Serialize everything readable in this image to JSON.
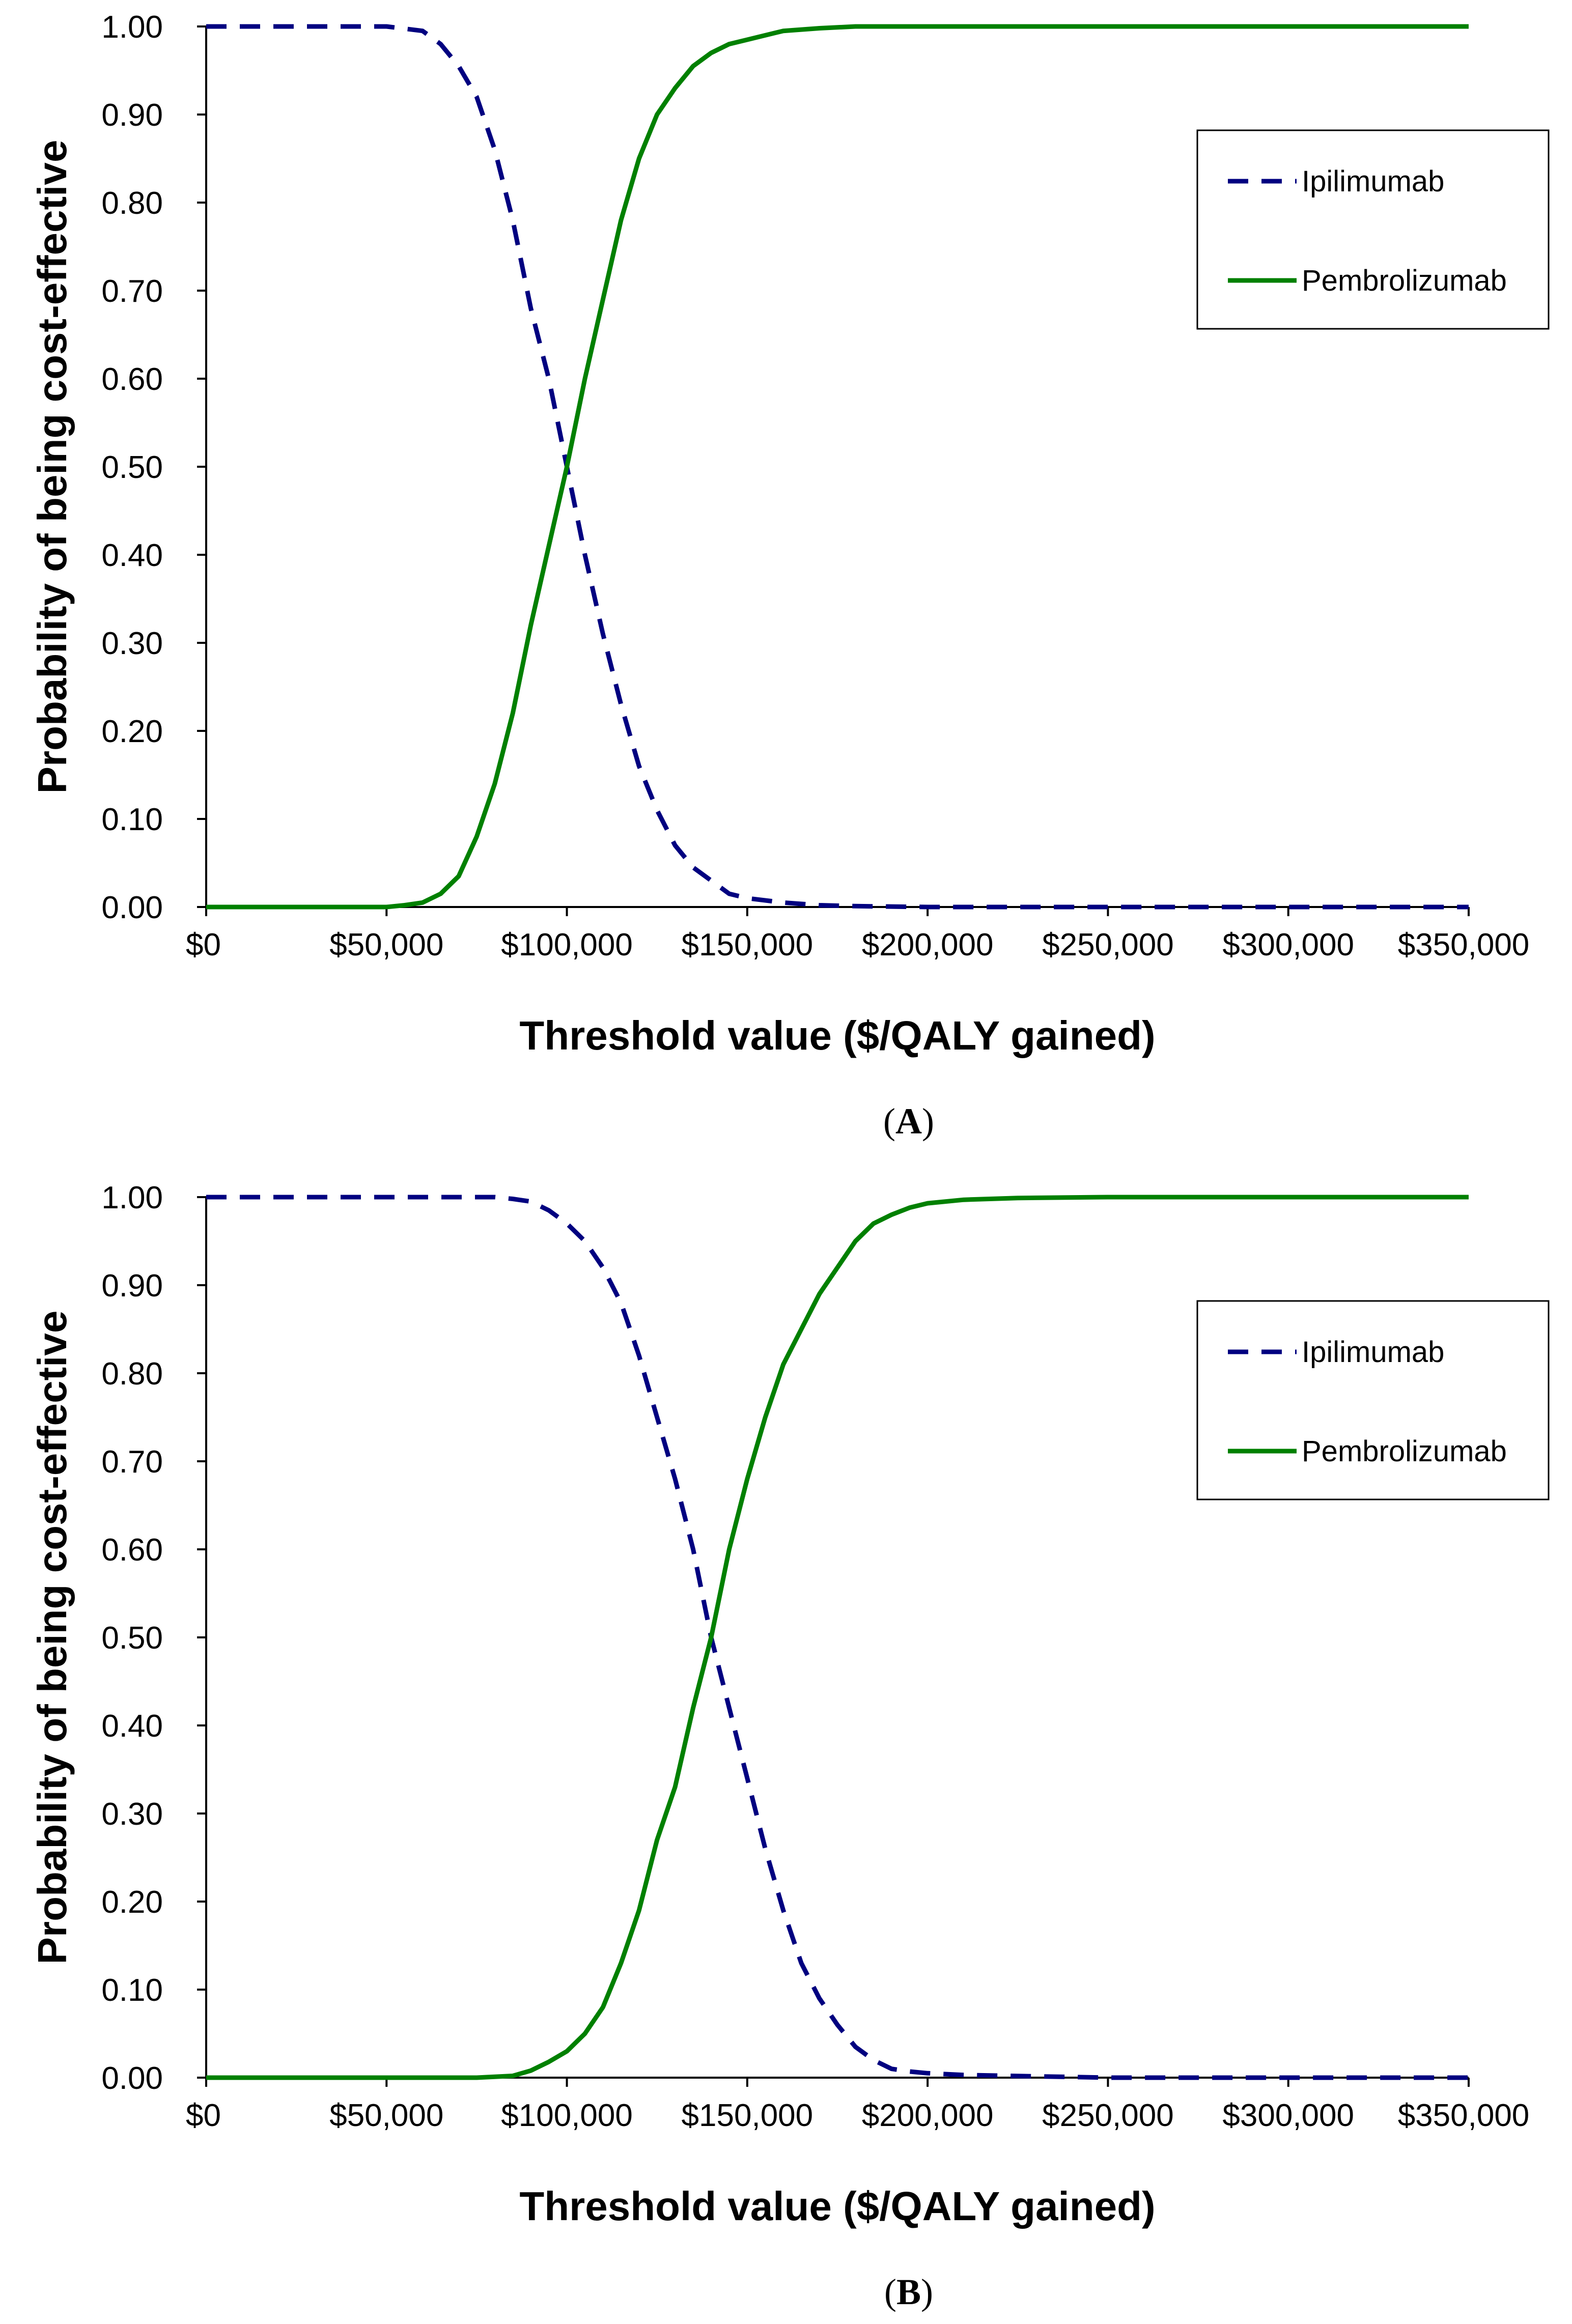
{
  "chart_data": [
    {
      "type": "line",
      "panel_label": "(A)",
      "panel_letter": "A",
      "xlabel": "Threshold value ($/QALY gained)",
      "ylabel": "Probability of being cost-effective",
      "xlim": [
        0,
        350000
      ],
      "ylim": [
        0,
        1
      ],
      "x_ticks": [
        0,
        50000,
        100000,
        150000,
        200000,
        250000,
        300000,
        350000
      ],
      "x_tick_labels": [
        "$0",
        "$50,000",
        "$100,000",
        "$150,000",
        "$200,000",
        "$250,000",
        "$300,000",
        "$350,000"
      ],
      "y_ticks": [
        0,
        0.1,
        0.2,
        0.3,
        0.4,
        0.5,
        0.6,
        0.7,
        0.8,
        0.9,
        1.0
      ],
      "y_tick_labels": [
        "0.00",
        "0.10",
        "0.20",
        "0.30",
        "0.40",
        "0.50",
        "0.60",
        "0.70",
        "0.80",
        "0.90",
        "1.00"
      ],
      "legend_position": "top-right",
      "series": [
        {
          "name": "Ipilimumab",
          "style": "dashed",
          "color": "#000080",
          "x": [
            0,
            50000,
            60000,
            65000,
            70000,
            75000,
            80000,
            85000,
            90000,
            95000,
            100000,
            105000,
            110000,
            115000,
            120000,
            125000,
            130000,
            135000,
            140000,
            145000,
            150000,
            160000,
            170000,
            180000,
            200000,
            250000,
            300000,
            350000
          ],
          "values": [
            1.0,
            1.0,
            0.995,
            0.98,
            0.955,
            0.92,
            0.86,
            0.78,
            0.68,
            0.6,
            0.5,
            0.4,
            0.31,
            0.23,
            0.16,
            0.11,
            0.07,
            0.045,
            0.03,
            0.015,
            0.01,
            0.005,
            0.002,
            0.001,
            0.0,
            0.0,
            0.0,
            0.0
          ]
        },
        {
          "name": "Pembrolizumab",
          "style": "solid",
          "color": "#008000",
          "x": [
            0,
            50000,
            55000,
            60000,
            65000,
            70000,
            75000,
            80000,
            85000,
            90000,
            95000,
            100000,
            105000,
            110000,
            115000,
            120000,
            125000,
            130000,
            135000,
            140000,
            145000,
            150000,
            160000,
            170000,
            180000,
            200000,
            250000,
            300000,
            350000
          ],
          "values": [
            0.0,
            0.0,
            0.002,
            0.005,
            0.015,
            0.035,
            0.08,
            0.14,
            0.22,
            0.32,
            0.41,
            0.5,
            0.6,
            0.69,
            0.78,
            0.85,
            0.9,
            0.93,
            0.955,
            0.97,
            0.98,
            0.985,
            0.995,
            0.998,
            1.0,
            1.0,
            1.0,
            1.0,
            1.0
          ]
        }
      ]
    },
    {
      "type": "line",
      "panel_label": "(B)",
      "panel_letter": "B",
      "xlabel": "Threshold value ($/QALY gained)",
      "ylabel": "Probability of being cost-effective",
      "xlim": [
        0,
        350000
      ],
      "ylim": [
        0,
        1
      ],
      "x_ticks": [
        0,
        50000,
        100000,
        150000,
        200000,
        250000,
        300000,
        350000
      ],
      "x_tick_labels": [
        "$0",
        "$50,000",
        "$100,000",
        "$150,000",
        "$200,000",
        "$250,000",
        "$300,000",
        "$350,000"
      ],
      "y_ticks": [
        0,
        0.1,
        0.2,
        0.3,
        0.4,
        0.5,
        0.6,
        0.7,
        0.8,
        0.9,
        1.0
      ],
      "y_tick_labels": [
        "0.00",
        "0.10",
        "0.20",
        "0.30",
        "0.40",
        "0.50",
        "0.60",
        "0.70",
        "0.80",
        "0.90",
        "1.00"
      ],
      "legend_position": "top-right",
      "series": [
        {
          "name": "Ipilimumab",
          "style": "dashed",
          "color": "#000080",
          "x": [
            0,
            80000,
            85000,
            90000,
            95000,
            100000,
            105000,
            110000,
            115000,
            120000,
            125000,
            130000,
            135000,
            140000,
            145000,
            150000,
            155000,
            160000,
            165000,
            170000,
            175000,
            180000,
            185000,
            190000,
            195000,
            200000,
            210000,
            250000,
            300000,
            350000
          ],
          "values": [
            1.0,
            1.0,
            0.998,
            0.995,
            0.985,
            0.97,
            0.95,
            0.92,
            0.88,
            0.82,
            0.75,
            0.68,
            0.6,
            0.5,
            0.42,
            0.34,
            0.26,
            0.19,
            0.13,
            0.09,
            0.06,
            0.035,
            0.02,
            0.01,
            0.007,
            0.005,
            0.003,
            0.0,
            0.0,
            0.0
          ]
        },
        {
          "name": "Pembrolizumab",
          "style": "solid",
          "color": "#008000",
          "x": [
            0,
            75000,
            85000,
            90000,
            95000,
            100000,
            105000,
            110000,
            115000,
            120000,
            125000,
            130000,
            135000,
            140000,
            145000,
            150000,
            155000,
            160000,
            165000,
            170000,
            175000,
            180000,
            185000,
            190000,
            195000,
            200000,
            210000,
            225000,
            250000,
            300000,
            350000
          ],
          "values": [
            0.0,
            0.0,
            0.002,
            0.008,
            0.018,
            0.03,
            0.05,
            0.08,
            0.13,
            0.19,
            0.27,
            0.33,
            0.42,
            0.5,
            0.6,
            0.68,
            0.75,
            0.81,
            0.85,
            0.89,
            0.92,
            0.95,
            0.97,
            0.98,
            0.988,
            0.993,
            0.997,
            0.999,
            1.0,
            1.0,
            1.0
          ]
        }
      ]
    }
  ]
}
